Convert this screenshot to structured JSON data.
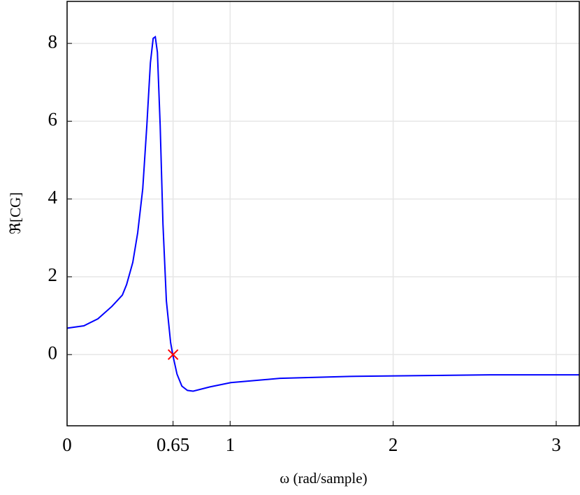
{
  "chart_data": {
    "type": "line",
    "x_label": "ω (rad/sample)",
    "y_label": "ℜ[CG]",
    "x": [
      0,
      0.103,
      0.189,
      0.275,
      0.339,
      0.365,
      0.403,
      0.433,
      0.464,
      0.489,
      0.511,
      0.528,
      0.541,
      0.554,
      0.571,
      0.588,
      0.609,
      0.635,
      0.648,
      0.674,
      0.704,
      0.738,
      0.773,
      0.876,
      1.004,
      1.305,
      1.734,
      2.163,
      2.592,
      3.1416
    ],
    "values": [
      0.68,
      0.74,
      0.92,
      1.24,
      1.53,
      1.8,
      2.37,
      3.13,
      4.26,
      5.88,
      7.5,
      8.13,
      8.17,
      7.77,
      5.88,
      3.36,
      1.38,
      0.31,
      0,
      -0.5,
      -0.81,
      -0.92,
      -0.94,
      -0.83,
      -0.72,
      -0.61,
      -0.56,
      -0.54,
      -0.52,
      -0.52
    ],
    "color": "#0000ff",
    "highlight_point": {
      "x": 0.65,
      "y": 0,
      "color": "#ff0000",
      "marker": "x"
    },
    "xlim": [
      0,
      3.1416
    ],
    "ylim": [
      -1.83,
      9.08
    ],
    "xticks": [
      0,
      0.65,
      1,
      2,
      3
    ],
    "yticks": [
      0,
      2,
      4,
      6,
      8
    ],
    "grid": true
  }
}
